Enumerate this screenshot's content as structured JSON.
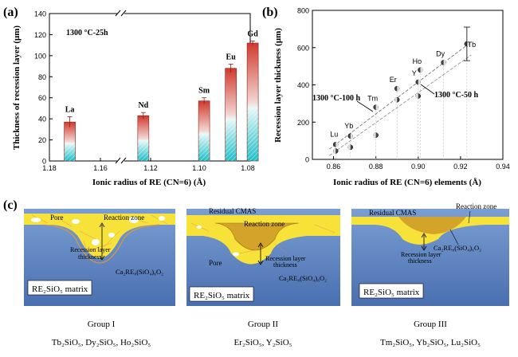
{
  "panel_a": {
    "label": "(a)",
    "condition": "1300 °C-25h",
    "ylabel": "Thickness of recession layer (μm)",
    "xlabel": "Ionic radius of RE (CN=6) (Å)",
    "x_ticks": [
      "1.18",
      "1.16",
      "1.12",
      "1.10",
      "1.08"
    ],
    "y_ticks": [
      "0",
      "20",
      "40",
      "60",
      "80",
      "100",
      "120",
      "140"
    ]
  },
  "panel_b": {
    "label": "(b)",
    "ylabel": "Recession layer thickness (μm)",
    "xlabel": "Ionic radius of RE (CN=6) elements (Å)",
    "x_ticks": [
      "0.86",
      "0.88",
      "0.90",
      "0.92",
      "0.94"
    ],
    "y_ticks": [
      "0",
      "200",
      "400",
      "600",
      "800"
    ],
    "annotation_100h": "1300 °C-100 h",
    "annotation_50h": "1300 °C-50 h"
  },
  "chart_data": [
    {
      "type": "bar",
      "categories": [
        "La",
        "Nd",
        "Sm",
        "Eu",
        "Gd"
      ],
      "x": [
        1.172,
        1.123,
        1.098,
        1.087,
        1.078
      ],
      "values": [
        37,
        43,
        57,
        88,
        112
      ],
      "errors": [
        5,
        3,
        3,
        4,
        2
      ],
      "title": "1300 °C-25h",
      "xlabel": "Ionic radius of RE (CN=6) (Å)",
      "ylabel": "Thickness of recession layer (μm)",
      "xlim": [
        1.18,
        1.07
      ],
      "ylim": [
        0,
        140
      ],
      "axis_break_between": [
        1.16,
        1.12
      ],
      "bar_colors": {
        "top": "#c0392b",
        "bottom": "#1fc3c8"
      }
    },
    {
      "type": "scatter",
      "xlabel": "Ionic radius of RE (CN=6) elements (Å)",
      "ylabel": "Recession layer thickness (μm)",
      "xlim": [
        0.85,
        0.94
      ],
      "ylim": [
        0,
        800
      ],
      "labels": [
        "Lu",
        "Yb",
        "Tm",
        "Er",
        "Y",
        "Ho",
        "Dy",
        "Tb"
      ],
      "x": [
        0.861,
        0.868,
        0.88,
        0.89,
        0.9,
        0.901,
        0.912,
        0.923
      ],
      "series": [
        {
          "name": "1300 °C-100 h",
          "values": [
            80,
            125,
            280,
            380,
            415,
            480,
            520,
            620
          ]
        },
        {
          "name": "1300 °C-50 h",
          "values": [
            45,
            65,
            130,
            320,
            340,
            null,
            null,
            null
          ]
        }
      ],
      "error_tb": 90
    }
  ],
  "panel_c": {
    "label": "(c)",
    "matrix_label": "RE₂SiO₅ matrix",
    "groups": [
      {
        "name": "Group I",
        "members": "Tb₂SiO₅, Dy₂SiO₅, Ho₂SiO₅",
        "labels": {
          "pore": "Pore",
          "reaction_zone": "Reaction zone",
          "recession": "Recession layer thickness",
          "apatite": "Ca₂RE₈(SiO₄)₆O₂"
        }
      },
      {
        "name": "Group II",
        "members": "Er₂SiO₅, Y₂SiO₅",
        "labels": {
          "cmas": "Residual CMAS",
          "reaction_zone": "Reaction zone",
          "pore": "Pore",
          "recession": "Recession layer thickness",
          "apatite": "Ca₂RE₈(SiO₄)₆O₂"
        }
      },
      {
        "name": "Group III",
        "members": "Tm₂SiO₅, Yb₂SiO₅, Lu₂SiO₅",
        "labels": {
          "cmas": "Residual CMAS",
          "reaction_zone": "Reaction zone",
          "recession": "Recession layer thickness",
          "apatite": "Ca₂RE₈(SiO₄)₆O₂"
        }
      }
    ]
  }
}
